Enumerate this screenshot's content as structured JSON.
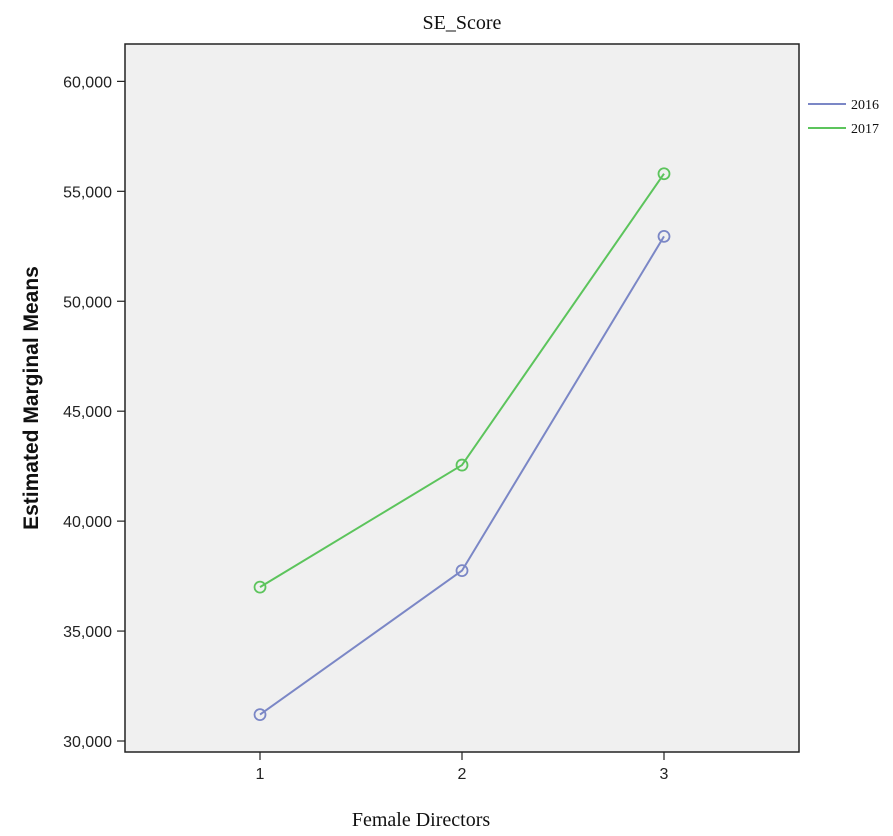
{
  "chart_data": {
    "type": "line",
    "title": "SE_Score",
    "xlabel": "Female Directors",
    "ylabel": "Estimated Marginal Means",
    "categories": [
      "1",
      "2",
      "3"
    ],
    "ylim": [
      29500,
      61700
    ],
    "yticks": [
      30000,
      35000,
      40000,
      45000,
      50000,
      55000,
      60000
    ],
    "ytick_labels": [
      "30,000",
      "35,000",
      "40,000",
      "45,000",
      "50,000",
      "55,000",
      "60,000"
    ],
    "grid": false,
    "legend_position": "right",
    "series": [
      {
        "name": "2016",
        "color": "#7b87c6",
        "values": [
          31200,
          37750,
          52950
        ]
      },
      {
        "name": "2017",
        "color": "#5cc45c",
        "values": [
          37000,
          42550,
          55800
        ]
      }
    ]
  }
}
